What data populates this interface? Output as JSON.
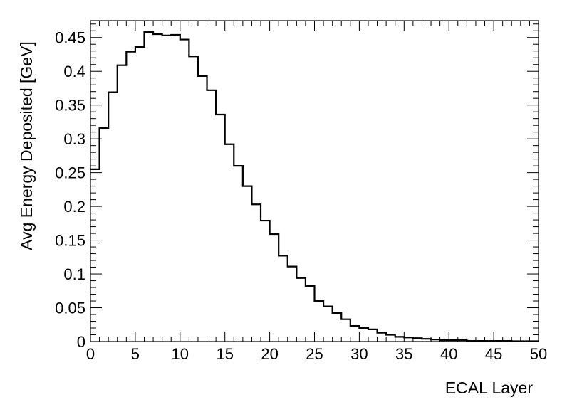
{
  "chart_data": {
    "type": "histogram",
    "xlabel": "ECAL Layer",
    "ylabel": "Avg Energy Deposited [GeV]",
    "xlim": [
      0,
      50
    ],
    "ylim": [
      0,
      0.475
    ],
    "grid": false,
    "legend": "none",
    "bin_width": 1,
    "bin_edges_start": 0,
    "values": [
      0.255,
      0.316,
      0.369,
      0.409,
      0.429,
      0.436,
      0.458,
      0.455,
      0.453,
      0.454,
      0.447,
      0.422,
      0.393,
      0.372,
      0.336,
      0.292,
      0.26,
      0.23,
      0.203,
      0.179,
      0.159,
      0.127,
      0.111,
      0.094,
      0.082,
      0.06,
      0.052,
      0.042,
      0.033,
      0.023,
      0.02,
      0.018,
      0.013,
      0.01,
      0.007,
      0.006,
      0.005,
      0.004,
      0.003,
      0.002,
      0.002,
      0.002,
      0.001,
      0.001,
      0.001,
      0.001,
      0.001,
      0.0005,
      0.0005,
      0.0005
    ],
    "x_ticks": [
      0,
      5,
      10,
      15,
      20,
      25,
      30,
      35,
      40,
      45,
      50
    ],
    "x_tick_labels": [
      "0",
      "5",
      "10",
      "15",
      "20",
      "25",
      "30",
      "35",
      "40",
      "45",
      "50"
    ],
    "y_ticks": [
      0,
      0.05,
      0.1,
      0.15,
      0.2,
      0.25,
      0.3,
      0.35,
      0.4,
      0.45
    ],
    "y_tick_labels": [
      "0",
      "0.05",
      "0.1",
      "0.15",
      "0.2",
      "0.25",
      "0.3",
      "0.35",
      "0.4",
      "0.45"
    ],
    "line_color": "#000000"
  }
}
